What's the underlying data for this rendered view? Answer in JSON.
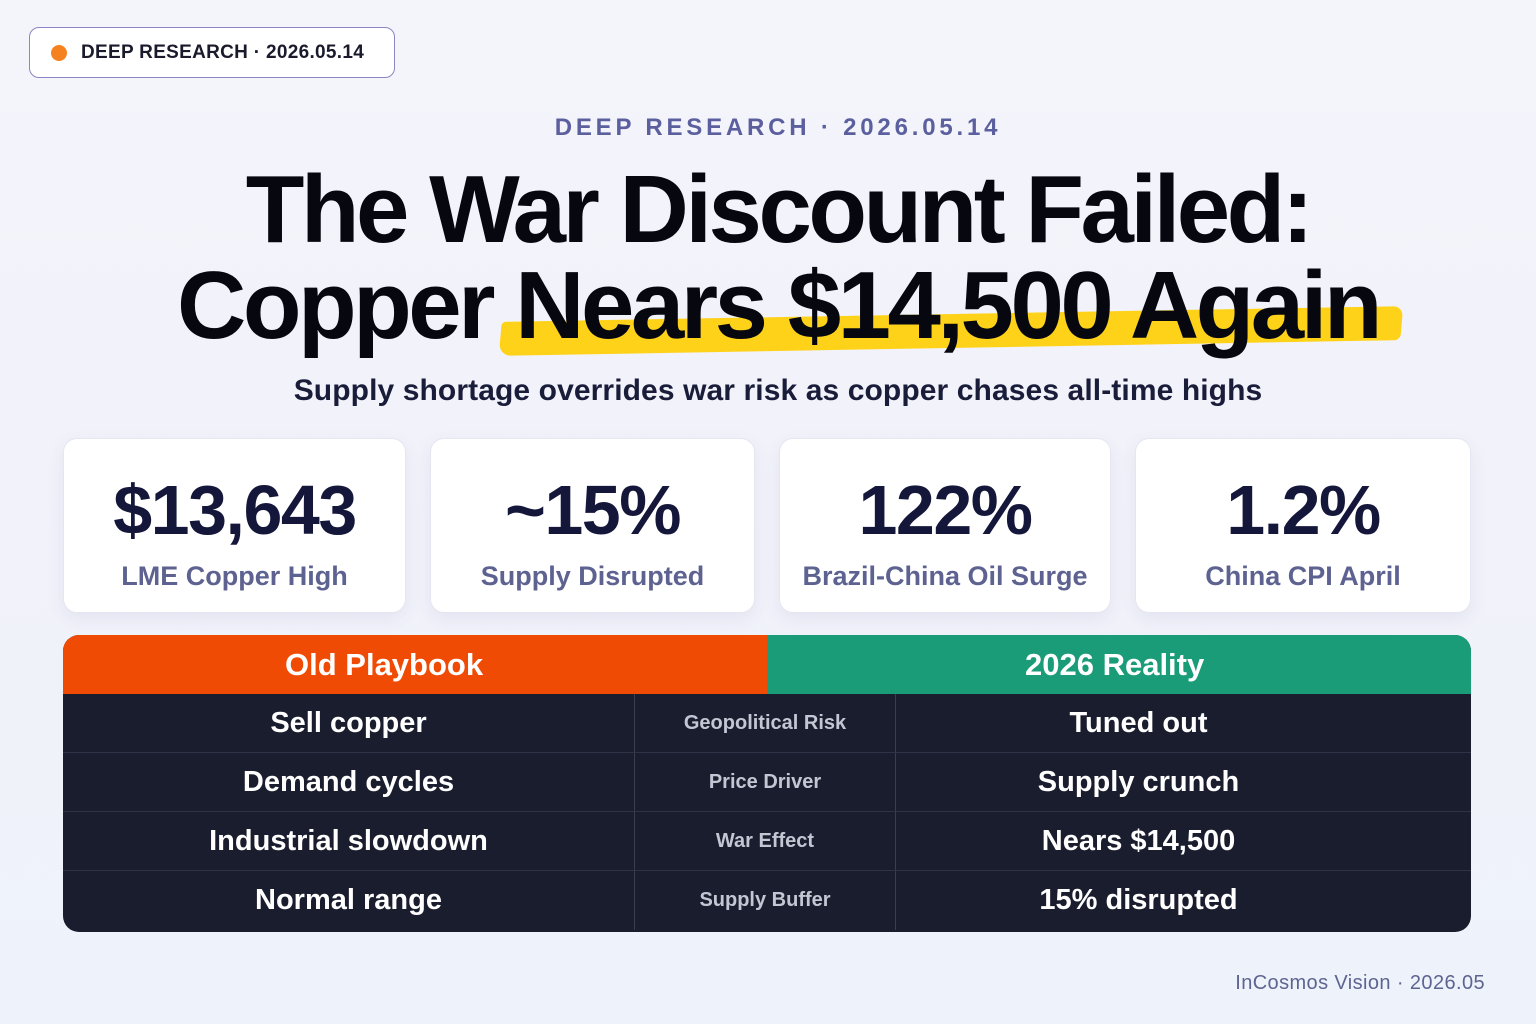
{
  "badge": {
    "text": "DEEP RESEARCH · 2026.05.14"
  },
  "kicker": "DEEP RESEARCH · 2026.05.14",
  "headline": {
    "line1": "The War Discount Failed:",
    "line2_plain": "Copper ",
    "line2_highlight": "Nears $14,500 Again"
  },
  "subtitle": "Supply shortage overrides war risk as copper chases all-time highs",
  "stats": [
    {
      "value": "$13,643",
      "label": "LME Copper High"
    },
    {
      "value": "~15%",
      "label": "Supply Disrupted"
    },
    {
      "value": "122%",
      "label": "Brazil-China Oil Surge"
    },
    {
      "value": "1.2%",
      "label": "China CPI April"
    }
  ],
  "comparison": {
    "header_left": "Old Playbook",
    "header_right": "2026 Reality",
    "rows": [
      {
        "old": "Sell copper",
        "factor": "Geopolitical Risk",
        "new": "Tuned out"
      },
      {
        "old": "Demand cycles",
        "factor": "Price Driver",
        "new": "Supply crunch"
      },
      {
        "old": "Industrial slowdown",
        "factor": "War Effect",
        "new": "Nears $14,500"
      },
      {
        "old": "Normal range",
        "factor": "Supply Buffer",
        "new": "15% disrupted"
      }
    ]
  },
  "footer": "InCosmos Vision · 2026.05",
  "colors": {
    "badge_dot": "#f5821f",
    "highlight": "#ffd21a",
    "old_header": "#f04b05",
    "new_header": "#1a9c78",
    "table_bg": "#1a1d2e"
  }
}
